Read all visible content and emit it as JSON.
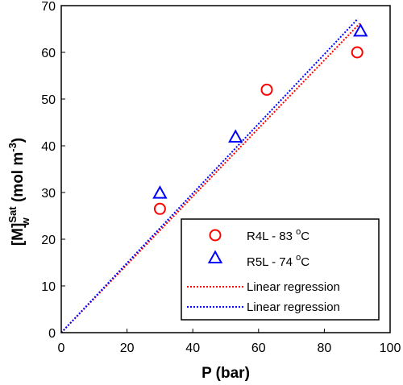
{
  "chart_data": {
    "type": "scatter",
    "xlabel": "P (bar)",
    "ylabel": {
      "main": "[M]",
      "sup": "Sat",
      "sub": "w",
      "rest": " (mol m",
      "unit_sup": "-3",
      "close": ")"
    },
    "xlim": [
      0,
      100
    ],
    "ylim": [
      0,
      70
    ],
    "xticks": [
      0,
      20,
      40,
      60,
      80,
      100
    ],
    "yticks": [
      0,
      10,
      20,
      30,
      40,
      50,
      60,
      70
    ],
    "grid": false,
    "legend_position": "bottom-right",
    "series": [
      {
        "name": "R4L - 83 ",
        "name_sup": "o",
        "name_after": "C",
        "marker": "circle",
        "color": "#ff0000",
        "points": [
          [
            30,
            26.5
          ],
          [
            62.5,
            52
          ],
          [
            90,
            60
          ]
        ]
      },
      {
        "name": "R5L - 74 ",
        "name_sup": "o",
        "name_after": "C",
        "marker": "triangle",
        "color": "#0000ff",
        "points": [
          [
            30,
            29.8
          ],
          [
            53,
            41.8
          ],
          [
            91,
            64.5
          ]
        ]
      }
    ],
    "regressions": [
      {
        "name": "Linear regression",
        "color": "#ff0000",
        "style": "dotted",
        "x": [
          0,
          90.8
        ],
        "y": [
          0,
          66.2
        ]
      },
      {
        "name": "Linear regression",
        "color": "#0000ff",
        "style": "dotted",
        "x": [
          0,
          90.2
        ],
        "y": [
          0,
          67.2
        ]
      }
    ]
  }
}
